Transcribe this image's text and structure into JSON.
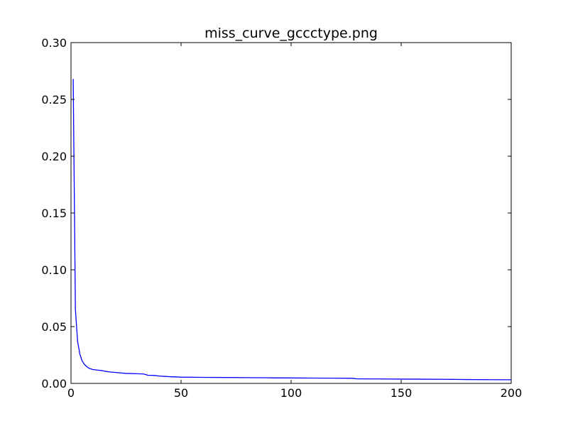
{
  "chart_data": {
    "type": "line",
    "title": "miss_curve_gccctype.png",
    "xlabel": "",
    "ylabel": "",
    "xlim": [
      0,
      200
    ],
    "ylim": [
      0,
      0.3
    ],
    "xticks": [
      0,
      50,
      100,
      150,
      200
    ],
    "xtick_labels": [
      "0",
      "50",
      "100",
      "150",
      "200"
    ],
    "yticks": [
      0.0,
      0.05,
      0.1,
      0.15,
      0.2,
      0.25,
      0.3
    ],
    "ytick_labels": [
      "0.00",
      "0.05",
      "0.10",
      "0.15",
      "0.20",
      "0.25",
      "0.30"
    ],
    "grid": false,
    "series": [
      {
        "color": "#0000ff",
        "x": [
          1,
          2,
          3,
          4,
          5,
          6,
          7,
          8,
          9,
          10,
          12,
          14,
          16,
          18,
          20,
          25,
          30,
          33,
          35,
          38,
          40,
          45,
          50,
          60,
          70,
          80,
          90,
          100,
          110,
          120,
          128,
          130,
          140,
          150,
          160,
          170,
          175,
          180,
          190,
          200
        ],
        "y": [
          0.268,
          0.065,
          0.037,
          0.026,
          0.02,
          0.017,
          0.015,
          0.0135,
          0.0127,
          0.0122,
          0.0117,
          0.0113,
          0.0105,
          0.01,
          0.0097,
          0.0088,
          0.0085,
          0.0083,
          0.0072,
          0.007,
          0.0065,
          0.0059,
          0.0055,
          0.0053,
          0.0052,
          0.0051,
          0.0049,
          0.0048,
          0.0047,
          0.0046,
          0.0045,
          0.004,
          0.0039,
          0.0038,
          0.0037,
          0.0036,
          0.0035,
          0.0034,
          0.0033,
          0.0032
        ]
      }
    ]
  }
}
